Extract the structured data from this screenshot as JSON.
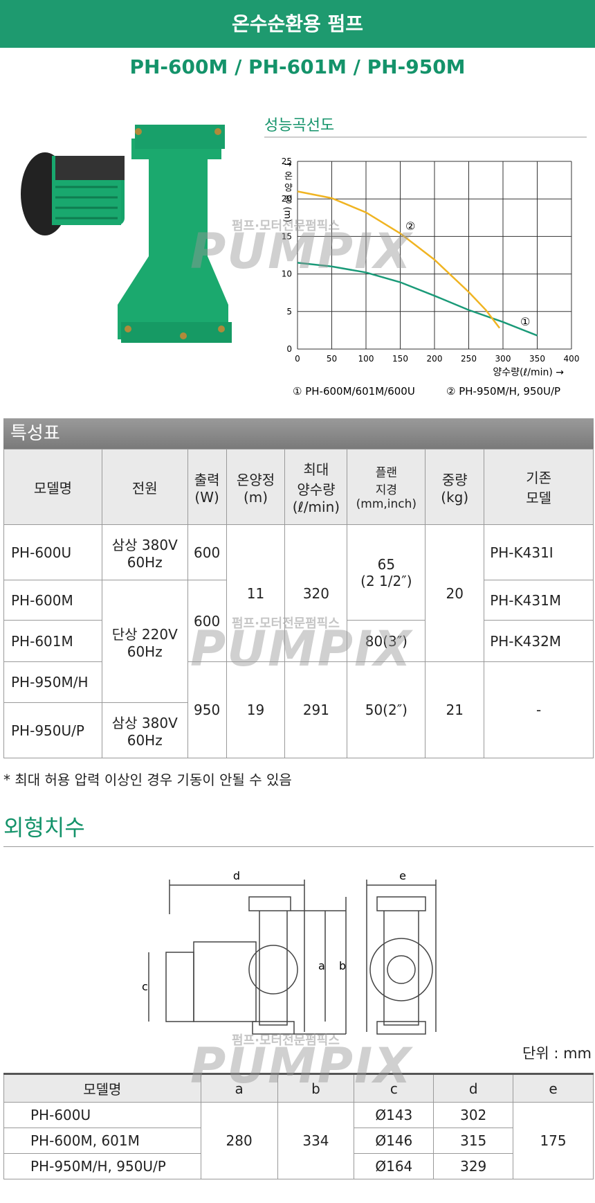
{
  "header": {
    "title": "온수순환용 펌프",
    "subtitle": "PH-600M / PH-601M / PH-950M"
  },
  "watermark": {
    "text": "펌프·모터전문펌픽스",
    "logo": "PUMPIX"
  },
  "chart": {
    "type": "line",
    "title": "성능곡선도",
    "ylabel": "↑ 온 양 정 (m)",
    "xlabel": "양수량(ℓ/min) →",
    "xlim": [
      0,
      400
    ],
    "xticks": [
      0,
      50,
      100,
      150,
      200,
      250,
      300,
      350,
      400
    ],
    "ylim": [
      0,
      25
    ],
    "yticks": [
      0,
      5,
      10,
      15,
      20,
      25
    ],
    "grid": true,
    "series": [
      {
        "name": "① PH-600M/601M/600U",
        "marker": "①",
        "color": "#1a9a78",
        "x": [
          0,
          50,
          100,
          150,
          200,
          250,
          300,
          350
        ],
        "values": [
          11.5,
          11.0,
          10.2,
          8.9,
          7.1,
          5.2,
          3.6,
          1.8
        ]
      },
      {
        "name": "② PH-950M/H, 950U/P",
        "marker": "②",
        "color": "#f0b422",
        "x": [
          0,
          50,
          100,
          150,
          200,
          250,
          275,
          295
        ],
        "values": [
          21,
          20.1,
          18.2,
          15.4,
          11.9,
          7.6,
          5.2,
          2.8
        ]
      }
    ]
  },
  "spec_table": {
    "title": "특성표",
    "header": [
      "모델명",
      "전원",
      "출력\n(W)",
      "온양정\n(m)",
      "최대\n양수량\n(ℓ/min)",
      "플랜\n지경\n(mm,inch)",
      "중량\n(kg)",
      "기존\n모델"
    ],
    "rows": [
      [
        "PH-600U",
        "삼상 380V\n60Hz",
        "600",
        "11",
        "320",
        "65\n(2 1/2″)",
        "20",
        "PH-K431I"
      ],
      [
        "PH-600M",
        "단상 220V\n60Hz",
        "600",
        "PH-K431M"
      ],
      [
        "PH-601M",
        "80(3″)",
        "PH-K432M"
      ],
      [
        "PH-950M/H",
        "950",
        "19",
        "291",
        "50(2″)",
        "21",
        "-"
      ],
      [
        "PH-950U/P",
        "삼상 380V\n60Hz"
      ]
    ],
    "note": "* 최대 허용 압력 이상인 경우 기동이 안될 수 있음"
  },
  "dimensions": {
    "title": "외형치수",
    "labels": [
      "d",
      "e",
      "c",
      "a",
      "b"
    ],
    "unit": "단위 : mm",
    "header": [
      "모델명",
      "a",
      "b",
      "c",
      "d",
      "e"
    ],
    "rows": [
      [
        "PH-600U",
        "280",
        "334",
        "Ø143",
        "302",
        "175"
      ],
      [
        "PH-600M, 601M",
        "Ø146",
        "315"
      ],
      [
        "PH-950M/H, 950U/P",
        "Ø164",
        "329"
      ]
    ]
  }
}
